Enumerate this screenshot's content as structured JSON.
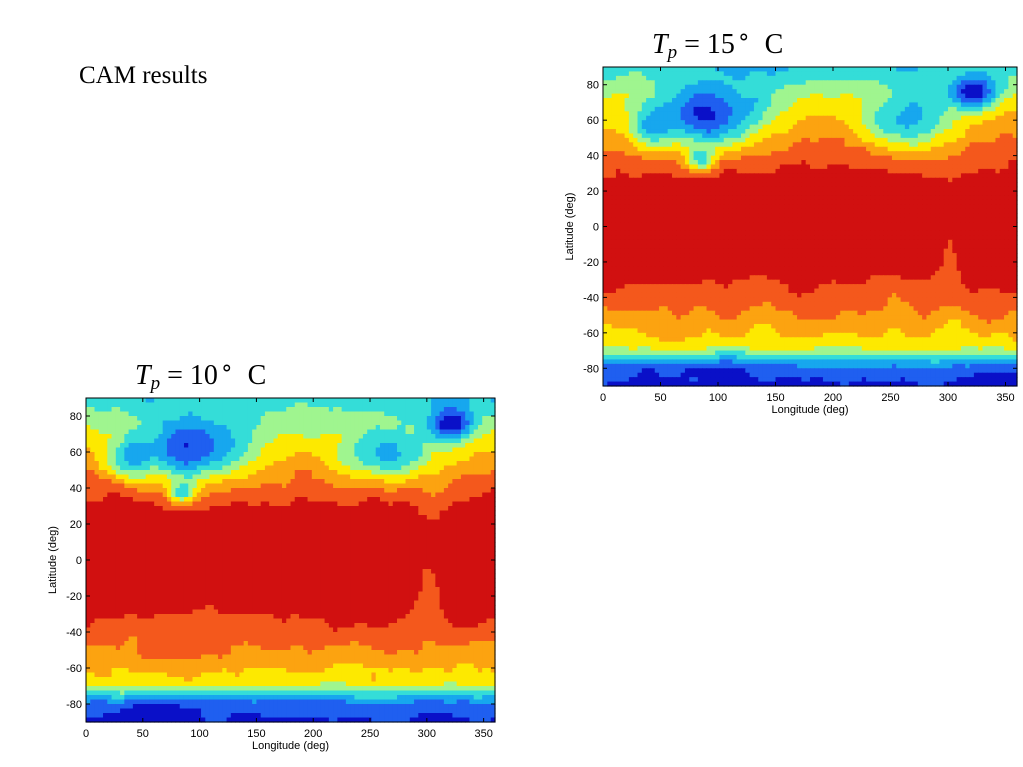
{
  "slide": {
    "heading": "CAM results"
  },
  "panels": [
    {
      "id": "tp15",
      "title": {
        "symbol": "T",
        "subscript": "p",
        "eq": "=",
        "value": "15",
        "unit": "C"
      }
    },
    {
      "id": "tp10",
      "title": {
        "symbol": "T",
        "subscript": "p",
        "eq": "=",
        "value": "10",
        "unit": "C"
      }
    }
  ],
  "chart_data": [
    {
      "type": "heatmap",
      "subtype": "filled-contour",
      "xlabel": "Longitude (deg)",
      "ylabel": "Latitude (deg)",
      "xlim": [
        0,
        360
      ],
      "ylim": [
        -90,
        90
      ],
      "xticks": [
        0,
        50,
        100,
        150,
        200,
        250,
        300,
        350
      ],
      "yticks": [
        80,
        60,
        40,
        20,
        0,
        -20,
        -40,
        -60,
        -80
      ],
      "grid": false,
      "colormap": "jet",
      "colors": {
        "level1": "#0a10c8",
        "level2": "#1f5ff0",
        "level3": "#17a7ee",
        "level4": "#34ddd8",
        "level5": "#9ff58f",
        "level6": "#fde900",
        "level7": "#fca310",
        "level8": "#f4581c",
        "level9": "#d11010"
      }
    },
    {
      "type": "heatmap",
      "subtype": "filled-contour",
      "xlabel": "Longitude (deg)",
      "ylabel": "Latitude (deg)",
      "xlim": [
        0,
        360
      ],
      "ylim": [
        -90,
        90
      ],
      "xticks": [
        0,
        50,
        100,
        150,
        200,
        250,
        300,
        350
      ],
      "yticks": [
        80,
        60,
        40,
        20,
        0,
        -20,
        -40,
        -60,
        -80
      ],
      "grid": false,
      "colormap": "jet",
      "colors": {
        "level1": "#0a10c8",
        "level2": "#1f5ff0",
        "level3": "#17a7ee",
        "level4": "#34ddd8",
        "level5": "#9ff58f",
        "level6": "#fde900",
        "level7": "#fca310",
        "level8": "#f4581c",
        "level9": "#d11010"
      }
    }
  ]
}
